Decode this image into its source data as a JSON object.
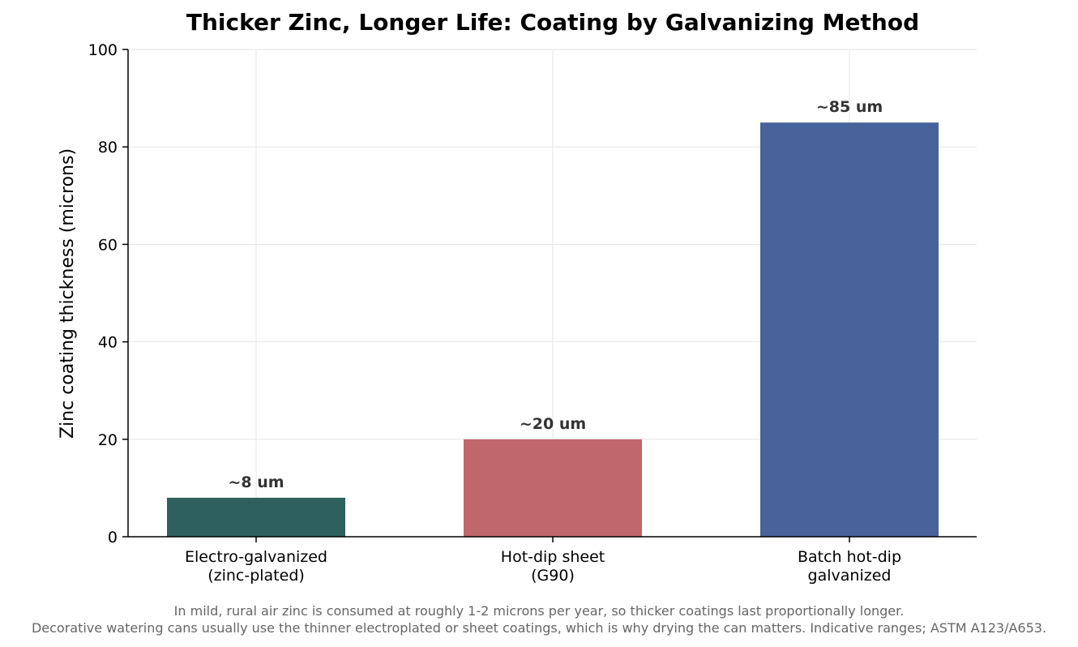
{
  "chart_data": {
    "type": "bar",
    "title": "Thicker Zinc, Longer Life: Coating by Galvanizing Method",
    "xlabel": "",
    "ylabel": "Zinc coating thickness (microns)",
    "ylim": [
      0,
      100
    ],
    "yticks": [
      0,
      20,
      40,
      60,
      80,
      100
    ],
    "grid": true,
    "categories": [
      [
        "Electro-galvanized",
        "(zinc-plated)"
      ],
      [
        "Hot-dip sheet",
        "(G90)"
      ],
      [
        "Batch hot-dip",
        "galvanized"
      ]
    ],
    "values": [
      8,
      20,
      85
    ],
    "data_labels": [
      "~8 um",
      "~20 um",
      "~85 um"
    ],
    "colors": [
      "#2e615e",
      "#c0676b",
      "#48629a"
    ]
  },
  "footnotes": [
    "In mild, rural air zinc is consumed at roughly 1-2 microns per year, so thicker coatings last proportionally longer.",
    "Decorative watering cans usually use the thinner electroplated or sheet coatings, which is why drying the can matters. Indicative ranges; ASTM A123/A653."
  ]
}
